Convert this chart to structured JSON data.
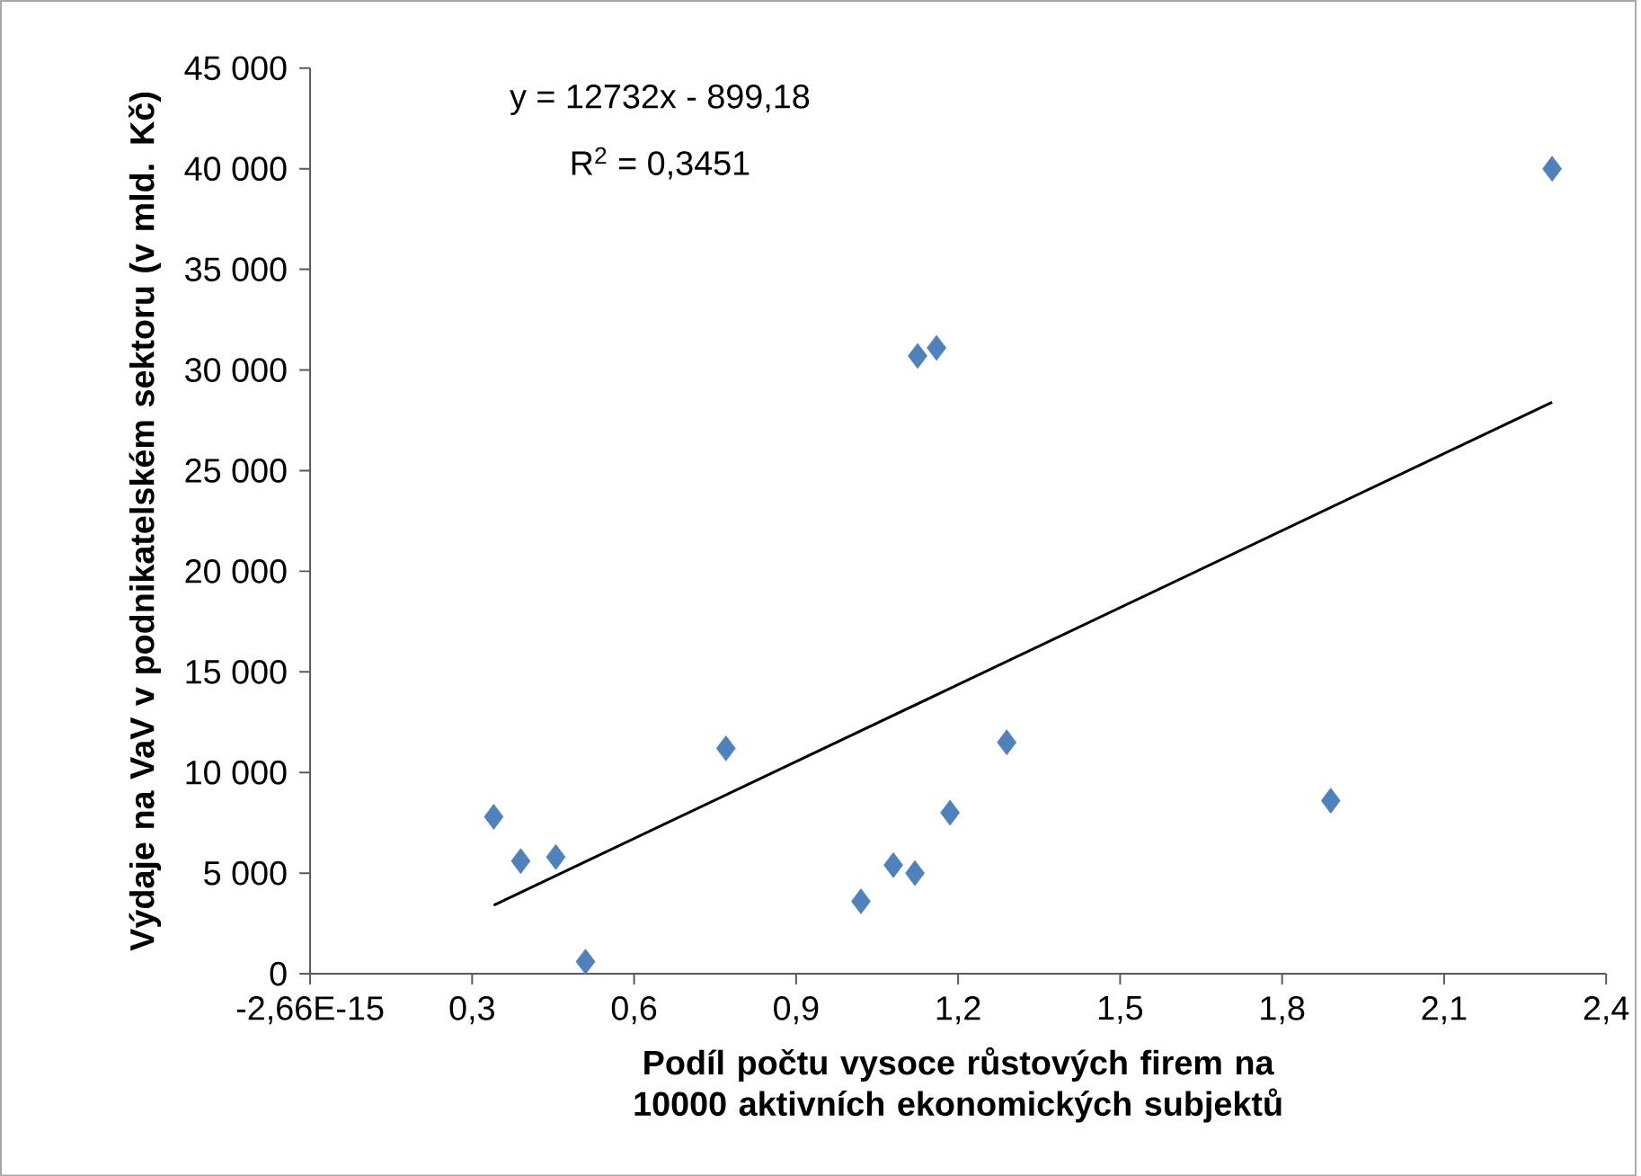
{
  "chart_data": {
    "type": "scatter",
    "xlabel": "Podíl počtu vysoce růstových firem na 10000 aktivních ekonomických subjektů",
    "ylabel": "Výdaje na  VaV v podnikatelském sektoru (v mld. Kč)",
    "xlim": [
      0,
      2.4
    ],
    "ylim": [
      0,
      45000
    ],
    "xticks": [
      {
        "value": 0,
        "label": "-2,66E-15"
      },
      {
        "value": 0.3,
        "label": "0,3"
      },
      {
        "value": 0.6,
        "label": "0,6"
      },
      {
        "value": 0.9,
        "label": "0,9"
      },
      {
        "value": 1.2,
        "label": "1,2"
      },
      {
        "value": 1.5,
        "label": "1,5"
      },
      {
        "value": 1.8,
        "label": "1,8"
      },
      {
        "value": 2.1,
        "label": "2,1"
      },
      {
        "value": 2.4,
        "label": "2,4"
      }
    ],
    "yticks": [
      0,
      {
        "value": 5000,
        "label": "5 000"
      },
      {
        "value": 10000,
        "label": "10 000"
      },
      {
        "value": 15000,
        "label": "15 000"
      },
      {
        "value": 20000,
        "label": "20 000"
      },
      {
        "value": 25000,
        "label": "25 000"
      },
      {
        "value": 30000,
        "label": "30 000"
      },
      {
        "value": 35000,
        "label": "35 000"
      },
      {
        "value": 40000,
        "label": "40 000"
      },
      {
        "value": 45000,
        "label": "45 000"
      }
    ],
    "marker": "diamond",
    "annotations": [
      "y = 12732x - 899,18",
      "R$^{2}$ = 0,3451"
    ],
    "series": [
      {
        "color": "#4f81bd",
        "x": [
          0.34,
          0.39,
          0.455,
          0.51,
          0.77,
          1.02,
          1.08,
          1.12,
          1.125,
          1.16,
          1.185,
          1.29,
          1.89,
          2.3
        ],
        "values": [
          7800,
          5600,
          5800,
          600,
          11200,
          3600,
          5400,
          5000,
          30700,
          31100,
          8000,
          11500,
          8600,
          40000
        ]
      },
      {
        "type": "line",
        "color": "#000000",
        "marker": "none",
        "x": [
          0.34,
          2.3
        ],
        "values": [
          3400,
          28400
        ]
      }
    ]
  }
}
